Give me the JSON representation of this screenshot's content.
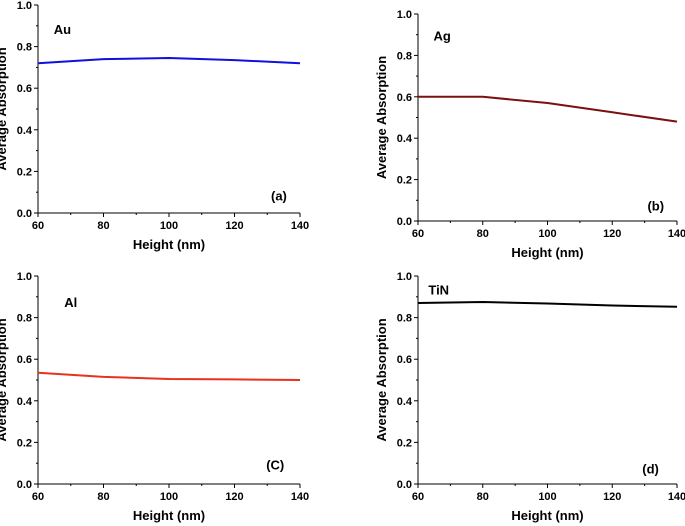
{
  "chart_data": [
    {
      "type": "line",
      "panel": "Au",
      "label": "Au",
      "panel_tag": "(a)",
      "xlabel": "Height (nm)",
      "ylabel": "Average Absorption",
      "xlim": [
        60,
        140
      ],
      "ylim": [
        0.0,
        1.0
      ],
      "xticks": [
        "60",
        "80",
        "100",
        "120",
        "140"
      ],
      "yticks": [
        "0.0",
        "0.2",
        "0.4",
        "0.6",
        "0.8",
        "1.0"
      ],
      "color": "#1010e0",
      "series": [
        {
          "name": "Au",
          "x": [
            60,
            80,
            100,
            120,
            140
          ],
          "values": [
            0.72,
            0.74,
            0.745,
            0.735,
            0.72
          ]
        }
      ]
    },
    {
      "type": "line",
      "panel": "Ag",
      "label": "Ag",
      "panel_tag": "(b)",
      "xlabel": "Height (nm)",
      "ylabel": "Average Absorption",
      "xlim": [
        60,
        140
      ],
      "ylim": [
        0.0,
        1.0
      ],
      "xticks": [
        "60",
        "80",
        "100",
        "120",
        "140"
      ],
      "yticks": [
        "0.0",
        "0.2",
        "0.4",
        "0.6",
        "0.8",
        "1.0"
      ],
      "color": "#7a1010",
      "series": [
        {
          "name": "Ag",
          "x": [
            60,
            80,
            100,
            120,
            140
          ],
          "values": [
            0.6,
            0.6,
            0.57,
            0.525,
            0.48
          ]
        }
      ]
    },
    {
      "type": "line",
      "panel": "Al",
      "label": "Al",
      "panel_tag": "(C)",
      "xlabel": "Height (nm)",
      "ylabel": "Average Absorption",
      "xlim": [
        60,
        140
      ],
      "ylim": [
        0.0,
        1.0
      ],
      "xticks": [
        "60",
        "80",
        "100",
        "120",
        "140"
      ],
      "yticks": [
        "0.0",
        "0.2",
        "0.4",
        "0.6",
        "0.8",
        "1.0"
      ],
      "color": "#e8331c",
      "series": [
        {
          "name": "Al",
          "x": [
            60,
            80,
            100,
            120,
            140
          ],
          "values": [
            0.535,
            0.515,
            0.505,
            0.503,
            0.5
          ]
        }
      ]
    },
    {
      "type": "line",
      "panel": "TiN",
      "label": "TiN",
      "panel_tag": "(d)",
      "xlabel": "Height (nm)",
      "ylabel": "Average Absorption",
      "xlim": [
        60,
        140
      ],
      "ylim": [
        0.0,
        1.0
      ],
      "xticks": [
        "60",
        "80",
        "100",
        "120",
        "140"
      ],
      "yticks": [
        "0.0",
        "0.2",
        "0.4",
        "0.6",
        "0.8",
        "1.0"
      ],
      "color": "#000000",
      "series": [
        {
          "name": "TiN",
          "x": [
            60,
            80,
            100,
            120,
            140
          ],
          "values": [
            0.87,
            0.875,
            0.868,
            0.858,
            0.852
          ]
        }
      ]
    }
  ]
}
